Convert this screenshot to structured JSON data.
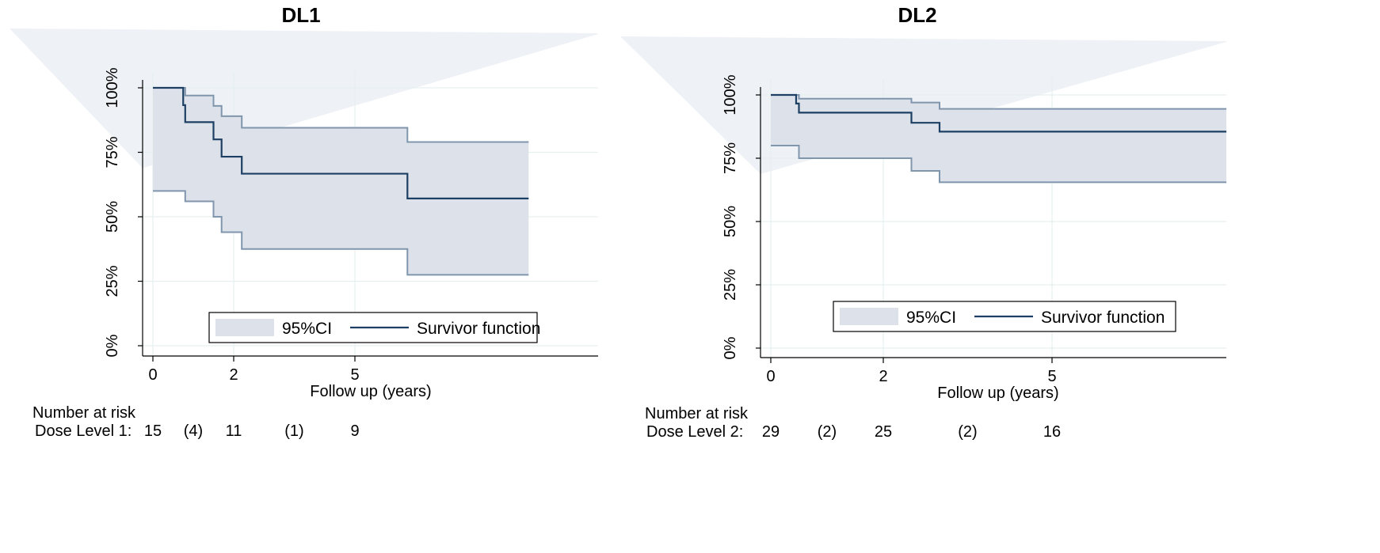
{
  "chart_data": [
    {
      "type": "line",
      "subtype": "kaplan-meier",
      "title": "DL1",
      "xlabel": "Follow up (years)",
      "ylabel": "",
      "xticks": [
        0,
        2,
        5
      ],
      "yticks": [
        "0%",
        "25%",
        "50%",
        "75%",
        "100%"
      ],
      "xlim": [
        0,
        9.5
      ],
      "ylim": [
        0,
        1
      ],
      "grid": true,
      "legend": {
        "position": "bottom-center",
        "ci_label": "95%CI",
        "line_label": "Survivor function"
      },
      "colors": {
        "survivor": "#1c3f63",
        "ci_fill": "#dde2ea",
        "ci_line": "#8096ad",
        "grid": "#e6efef"
      },
      "survivor": {
        "x": [
          0,
          0.75,
          0.8,
          1.5,
          1.7,
          2.2,
          6.3,
          9.3
        ],
        "y": [
          1.0,
          0.933,
          0.867,
          0.8,
          0.733,
          0.667,
          0.571,
          0.571
        ]
      },
      "ci_upper": {
        "x": [
          0,
          0.8,
          1.5,
          1.7,
          2.2,
          6.3,
          9.3
        ],
        "y": [
          1.0,
          0.97,
          0.93,
          0.89,
          0.845,
          0.79,
          0.79
        ]
      },
      "ci_lower": {
        "x": [
          0,
          0.8,
          1.5,
          1.7,
          2.2,
          6.3,
          9.3
        ],
        "y": [
          0.6,
          0.56,
          0.5,
          0.44,
          0.375,
          0.275,
          0.275
        ]
      },
      "risk_table": {
        "heading": "Number at risk",
        "row_label": "Dose Level 1:",
        "entries": [
          {
            "x": 0,
            "text": "15"
          },
          {
            "x": 1.0,
            "text": "(4)"
          },
          {
            "x": 2,
            "text": "11"
          },
          {
            "x": 3.5,
            "text": "(1)"
          },
          {
            "x": 5,
            "text": "9"
          }
        ]
      }
    },
    {
      "type": "line",
      "subtype": "kaplan-meier",
      "title": "DL2",
      "xlabel": "Follow up (years)",
      "ylabel": "",
      "xticks": [
        0,
        2,
        5
      ],
      "yticks": [
        "0%",
        "25%",
        "50%",
        "75%",
        "100%"
      ],
      "xlim": [
        0,
        8.1
      ],
      "ylim": [
        0,
        1
      ],
      "grid": true,
      "legend": {
        "position": "bottom-center",
        "ci_label": "95%CI",
        "line_label": "Survivor function"
      },
      "colors": {
        "survivor": "#1c3f63",
        "ci_fill": "#dde2ea",
        "ci_line": "#8096ad",
        "grid": "#e6efef"
      },
      "survivor": {
        "x": [
          0,
          0.45,
          0.5,
          2.5,
          3.0,
          8.1
        ],
        "y": [
          1.0,
          0.966,
          0.93,
          0.89,
          0.855,
          0.855
        ]
      },
      "ci_upper": {
        "x": [
          0,
          0.5,
          2.5,
          3.0,
          8.1
        ],
        "y": [
          1.0,
          0.985,
          0.97,
          0.945,
          0.945
        ]
      },
      "ci_lower": {
        "x": [
          0,
          0.5,
          2.5,
          3.0,
          8.1
        ],
        "y": [
          0.8,
          0.75,
          0.7,
          0.655,
          0.655
        ]
      },
      "risk_table": {
        "heading": "Number at risk",
        "row_label": "Dose Level 2:",
        "entries": [
          {
            "x": 0,
            "text": "29"
          },
          {
            "x": 1.0,
            "text": "(2)"
          },
          {
            "x": 2,
            "text": "25"
          },
          {
            "x": 3.5,
            "text": "(2)"
          },
          {
            "x": 5,
            "text": "16"
          }
        ]
      }
    }
  ]
}
